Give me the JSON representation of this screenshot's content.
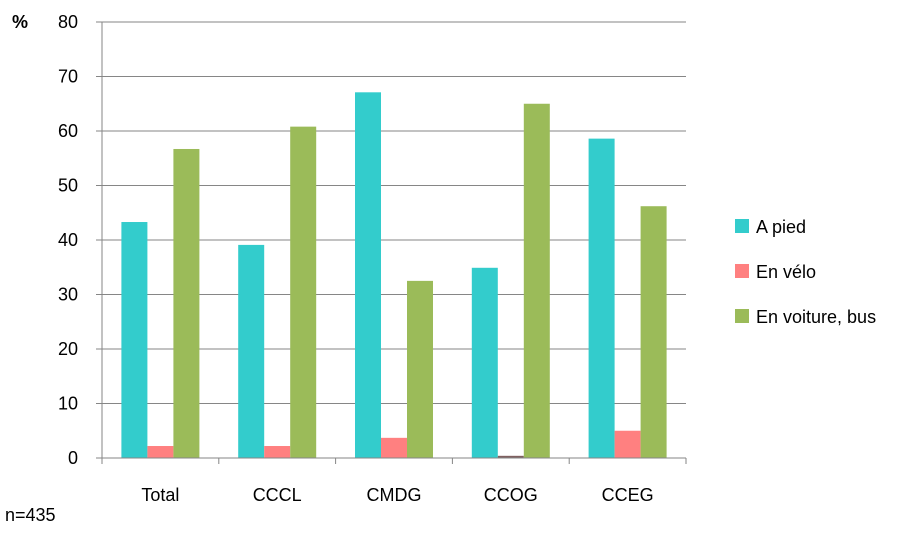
{
  "chart_data": {
    "type": "bar",
    "y_unit_label": "%",
    "categories": [
      "Total",
      "CCCL",
      "CMDG",
      "CCOG",
      "CCEG"
    ],
    "series": [
      {
        "name": "A pied",
        "color": "#33CCCC",
        "values": [
          43.3,
          39.1,
          67.1,
          34.9,
          58.6
        ]
      },
      {
        "name": "En vélo",
        "color": "#FF8080",
        "values": [
          2.2,
          2.2,
          3.7,
          0.4,
          5.0
        ]
      },
      {
        "name": "En voiture, bus",
        "color": "#9BBB59",
        "values": [
          56.7,
          60.8,
          32.5,
          65.0,
          46.2
        ]
      }
    ],
    "ylim": [
      0,
      80
    ],
    "yticks": [
      0,
      10,
      20,
      30,
      40,
      50,
      60,
      70,
      80
    ],
    "grid": true,
    "legend_position": "right",
    "note": "n=435"
  }
}
